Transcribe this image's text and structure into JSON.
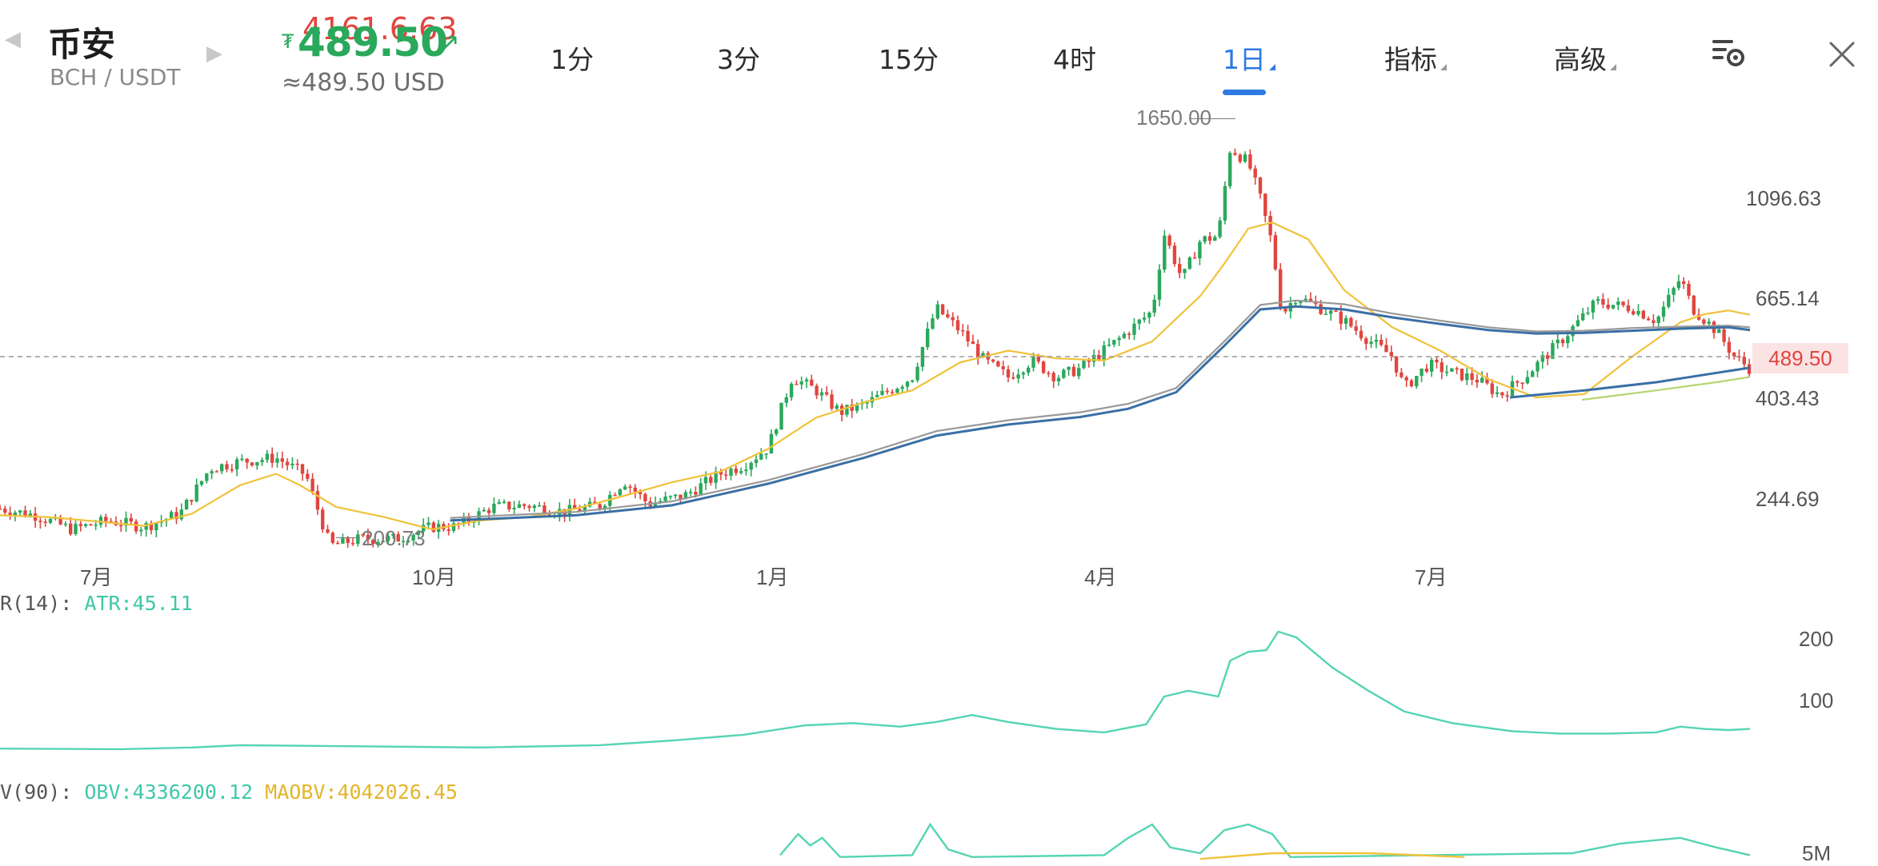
{
  "header": {
    "exchange": "币安",
    "pair": "BCH / USDT",
    "price_prev": "4161.6.63",
    "price_currency": "₮",
    "price": "489.50",
    "usd_equiv": "≈489.50 USD",
    "colors": {
      "up": "#2aa85c",
      "down": "#e0463f",
      "accent": "#2f79e3"
    }
  },
  "intervals": [
    {
      "label": "1分",
      "active": false
    },
    {
      "label": "3分",
      "active": false
    },
    {
      "label": "15分",
      "active": false
    },
    {
      "label": "4时",
      "active": false
    },
    {
      "label": "1日",
      "active": true
    },
    {
      "label": "指标",
      "active": false
    },
    {
      "label": "高级",
      "active": false
    }
  ],
  "icons": {
    "settings": "chart-settings-icon",
    "close": "close-icon",
    "prev": "chevron-left-icon",
    "next": "chevron-right-icon"
  },
  "chart_data": [
    {
      "type": "candlestick",
      "xlabels": [
        "7月",
        "10月",
        "1月",
        "4月",
        "7月"
      ],
      "ylabels": [
        "1096.63",
        "665.14",
        "403.43",
        "244.69"
      ],
      "current_price_label": "489.50",
      "high_marker": "1650.00",
      "low_marker": "200.73",
      "scale": "log",
      "ylim": [
        170,
        1800
      ],
      "series": [
        {
          "name": "MA-short",
          "color": "#f0c23a",
          "values": [
            [
              0,
              238
            ],
            [
              40,
              236
            ],
            [
              80,
              231
            ],
            [
              120,
              226
            ],
            [
              160,
              240
            ],
            [
              200,
              276
            ],
            [
              230,
              292
            ],
            [
              250,
              276
            ],
            [
              280,
              248
            ],
            [
              320,
              236
            ],
            [
              360,
              222
            ],
            [
              400,
              232
            ],
            [
              440,
              236
            ],
            [
              480,
              246
            ],
            [
              520,
              262
            ],
            [
              560,
              280
            ],
            [
              600,
              295
            ],
            [
              640,
              330
            ],
            [
              680,
              385
            ],
            [
              720,
              415
            ],
            [
              760,
              440
            ],
            [
              800,
              505
            ],
            [
              840,
              535
            ],
            [
              880,
              515
            ],
            [
              920,
              510
            ],
            [
              960,
              560
            ],
            [
              1000,
              700
            ],
            [
              1020,
              820
            ],
            [
              1040,
              975
            ],
            [
              1060,
              1005
            ],
            [
              1090,
              925
            ],
            [
              1120,
              720
            ],
            [
              1160,
              600
            ],
            [
              1200,
              535
            ],
            [
              1240,
              465
            ],
            [
              1280,
              425
            ],
            [
              1320,
              432
            ],
            [
              1360,
              520
            ],
            [
              1400,
              615
            ],
            [
              1420,
              640
            ],
            [
              1440,
              652
            ],
            [
              1458,
              638
            ]
          ]
        },
        {
          "name": "MA-long-1",
          "color": "#999999",
          "values": [
            [
              375,
              235
            ],
            [
              480,
              242
            ],
            [
              560,
              255
            ],
            [
              640,
              283
            ],
            [
              720,
              322
            ],
            [
              780,
              360
            ],
            [
              840,
              380
            ],
            [
              900,
              395
            ],
            [
              940,
              412
            ],
            [
              980,
              445
            ],
            [
              1020,
              560
            ],
            [
              1050,
              670
            ],
            [
              1080,
              685
            ],
            [
              1120,
              672
            ],
            [
              1160,
              642
            ],
            [
              1200,
              620
            ],
            [
              1240,
              600
            ],
            [
              1280,
              588
            ],
            [
              1320,
              590
            ],
            [
              1360,
              598
            ],
            [
              1400,
              602
            ],
            [
              1440,
              605
            ],
            [
              1458,
              600
            ]
          ]
        },
        {
          "name": "MA-long-2",
          "color": "#3a6fa5",
          "values": [
            [
              375,
              232
            ],
            [
              480,
              238
            ],
            [
              560,
              250
            ],
            [
              640,
              278
            ],
            [
              720,
              316
            ],
            [
              780,
              352
            ],
            [
              840,
              372
            ],
            [
              900,
              386
            ],
            [
              940,
              402
            ],
            [
              980,
              436
            ],
            [
              1020,
              548
            ],
            [
              1050,
              655
            ],
            [
              1080,
              665
            ],
            [
              1120,
              655
            ],
            [
              1160,
              630
            ],
            [
              1200,
              610
            ],
            [
              1240,
              592
            ],
            [
              1280,
              582
            ],
            [
              1320,
              584
            ],
            [
              1360,
              590
            ],
            [
              1400,
              596
            ],
            [
              1440,
              600
            ],
            [
              1458,
              592
            ]
          ]
        },
        {
          "name": "MA-long-3",
          "color": "#3a6fa5",
          "values": [
            [
              1258,
              425
            ],
            [
              1320,
              440
            ],
            [
              1380,
              458
            ],
            [
              1420,
              475
            ],
            [
              1458,
              492
            ]
          ]
        },
        {
          "name": "MA-long-4",
          "color": "#b5d66f",
          "values": [
            [
              1318,
              420
            ],
            [
              1380,
              440
            ],
            [
              1430,
              458
            ],
            [
              1458,
              470
            ]
          ]
        }
      ],
      "candles_path": [
        [
          0,
          246
        ],
        [
          30,
          238
        ],
        [
          60,
          222
        ],
        [
          90,
          232
        ],
        [
          120,
          225
        ],
        [
          150,
          240
        ],
        [
          175,
          300
        ],
        [
          200,
          310
        ],
        [
          230,
          316
        ],
        [
          255,
          290
        ],
        [
          275,
          205
        ],
        [
          300,
          212
        ],
        [
          330,
          212
        ],
        [
          360,
          225
        ],
        [
          380,
          225
        ],
        [
          410,
          248
        ],
        [
          440,
          250
        ],
        [
          470,
          242
        ],
        [
          500,
          250
        ],
        [
          520,
          282
        ],
        [
          540,
          252
        ],
        [
          570,
          262
        ],
        [
          600,
          292
        ],
        [
          620,
          305
        ],
        [
          640,
          332
        ],
        [
          660,
          470
        ],
        [
          680,
          440
        ],
        [
          700,
          395
        ],
        [
          720,
          410
        ],
        [
          760,
          470
        ],
        [
          780,
          660
        ],
        [
          800,
          590
        ],
        [
          820,
          510
        ],
        [
          840,
          470
        ],
        [
          860,
          510
        ],
        [
          880,
          470
        ],
        [
          900,
          490
        ],
        [
          930,
          560
        ],
        [
          960,
          650
        ],
        [
          970,
          950
        ],
        [
          985,
          760
        ],
        [
          1000,
          920
        ],
        [
          1015,
          940
        ],
        [
          1025,
          1450
        ],
        [
          1040,
          1350
        ],
        [
          1050,
          1130
        ],
        [
          1060,
          900
        ],
        [
          1068,
          640
        ],
        [
          1080,
          700
        ],
        [
          1100,
          660
        ],
        [
          1120,
          620
        ],
        [
          1140,
          565
        ],
        [
          1160,
          520
        ],
        [
          1170,
          445
        ],
        [
          1190,
          500
        ],
        [
          1210,
          480
        ],
        [
          1230,
          465
        ],
        [
          1250,
          430
        ],
        [
          1270,
          470
        ],
        [
          1300,
          560
        ],
        [
          1330,
          680
        ],
        [
          1360,
          660
        ],
        [
          1380,
          620
        ],
        [
          1400,
          765
        ],
        [
          1410,
          660
        ],
        [
          1430,
          590
        ],
        [
          1445,
          520
        ],
        [
          1458,
          490
        ]
      ]
    },
    {
      "type": "line",
      "indicator_label": "R(14): ",
      "series_label": "ATR:45.11",
      "ylabels": [
        "200",
        "100"
      ],
      "ylim": [
        0,
        230
      ],
      "series": [
        {
          "name": "ATR",
          "color": "#55d4b4",
          "values": [
            [
              0,
              8
            ],
            [
              100,
              7
            ],
            [
              160,
              10
            ],
            [
              200,
              14
            ],
            [
              300,
              12
            ],
            [
              400,
              10
            ],
            [
              500,
              14
            ],
            [
              560,
              22
            ],
            [
              620,
              32
            ],
            [
              670,
              48
            ],
            [
              710,
              52
            ],
            [
              750,
              46
            ],
            [
              780,
              54
            ],
            [
              810,
              66
            ],
            [
              840,
              54
            ],
            [
              880,
              42
            ],
            [
              920,
              36
            ],
            [
              955,
              50
            ],
            [
              970,
              98
            ],
            [
              990,
              108
            ],
            [
              1015,
              98
            ],
            [
              1025,
              160
            ],
            [
              1040,
              175
            ],
            [
              1055,
              178
            ],
            [
              1065,
              210
            ],
            [
              1080,
              200
            ],
            [
              1110,
              148
            ],
            [
              1140,
              108
            ],
            [
              1170,
              72
            ],
            [
              1210,
              52
            ],
            [
              1260,
              38
            ],
            [
              1300,
              34
            ],
            [
              1340,
              34
            ],
            [
              1380,
              36
            ],
            [
              1400,
              46
            ],
            [
              1420,
              42
            ],
            [
              1440,
              40
            ],
            [
              1458,
              42
            ]
          ]
        }
      ]
    },
    {
      "type": "line",
      "indicator_label": "V(90): ",
      "series_label_1": "OBV:4336200.12",
      "series_label_2": "MAOBV:4042026.45",
      "ylabels": [
        "5M"
      ],
      "series": [
        {
          "name": "OBV",
          "color": "#55d4b4",
          "values": [
            [
              650,
              8
            ],
            [
              665,
              30
            ],
            [
              675,
              18
            ],
            [
              685,
              26
            ],
            [
              700,
              6
            ],
            [
              760,
              8
            ],
            [
              775,
              40
            ],
            [
              790,
              14
            ],
            [
              810,
              6
            ],
            [
              920,
              8
            ],
            [
              940,
              26
            ],
            [
              960,
              40
            ],
            [
              975,
              16
            ],
            [
              1000,
              10
            ],
            [
              1020,
              34
            ],
            [
              1040,
              40
            ],
            [
              1060,
              30
            ],
            [
              1075,
              6
            ],
            [
              1310,
              10
            ],
            [
              1350,
              20
            ],
            [
              1400,
              26
            ],
            [
              1430,
              16
            ],
            [
              1458,
              8
            ]
          ]
        },
        {
          "name": "MAOBV",
          "color": "#f0c23a",
          "values": [
            [
              1000,
              4
            ],
            [
              1060,
              10
            ],
            [
              1140,
              10
            ],
            [
              1220,
              6
            ]
          ]
        }
      ]
    }
  ]
}
